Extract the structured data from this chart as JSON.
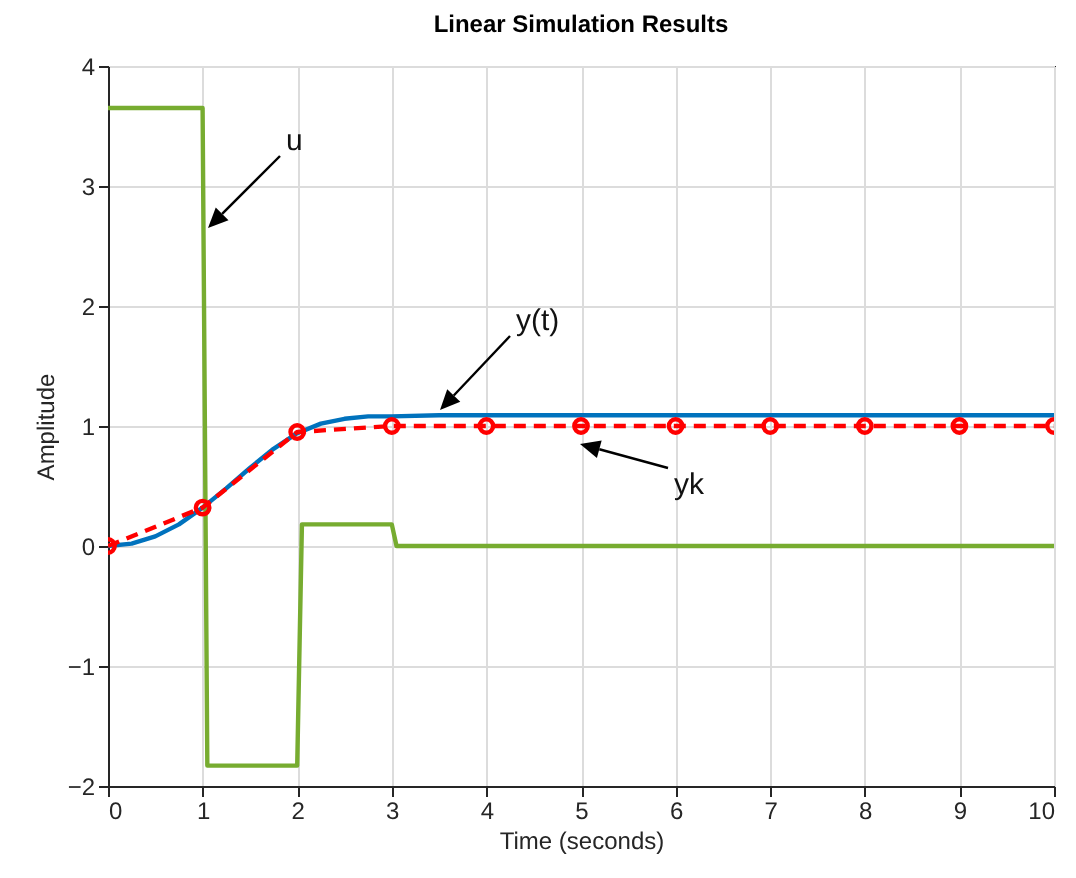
{
  "chart_data": {
    "type": "line",
    "title": "Linear Simulation Results",
    "xlabel": "Time (seconds)",
    "ylabel": "Amplitude",
    "xlim": [
      0,
      10
    ],
    "ylim": [
      -2,
      4
    ],
    "xticks": [
      0,
      1,
      2,
      3,
      4,
      5,
      6,
      7,
      8,
      9,
      10
    ],
    "yticks": [
      -2,
      -1,
      0,
      1,
      2,
      3,
      4
    ],
    "grid": true,
    "series": [
      {
        "color": "#77ac30",
        "x": [
          0,
          1,
          1.05,
          2,
          2.05,
          3,
          3.05,
          10
        ],
        "values": [
          3.65,
          3.65,
          -1.83,
          -1.83,
          0.18,
          0.18,
          0,
          0
        ]
      },
      {
        "color": "#0072bd",
        "x": [
          0,
          0.25,
          0.5,
          0.75,
          1,
          1.25,
          1.5,
          1.75,
          2,
          2.25,
          2.5,
          2.75,
          3,
          3.5,
          4,
          5,
          6,
          7,
          8,
          9,
          10
        ],
        "values": [
          0,
          0.02,
          0.08,
          0.18,
          0.32,
          0.48,
          0.65,
          0.81,
          0.94,
          1.02,
          1.06,
          1.08,
          1.08,
          1.09,
          1.09,
          1.09,
          1.09,
          1.09,
          1.09,
          1.09,
          1.09
        ]
      },
      {
        "color": "#ff0000",
        "line_style": "dashed",
        "marker": "circle",
        "x": [
          0,
          1,
          2,
          3,
          4,
          5,
          6,
          7,
          8,
          9,
          10
        ],
        "values": [
          0,
          0.32,
          0.95,
          1,
          1,
          1,
          1,
          1,
          1,
          1,
          1
        ]
      }
    ],
    "annotations": [
      "u",
      "y(t)",
      "yk"
    ]
  }
}
